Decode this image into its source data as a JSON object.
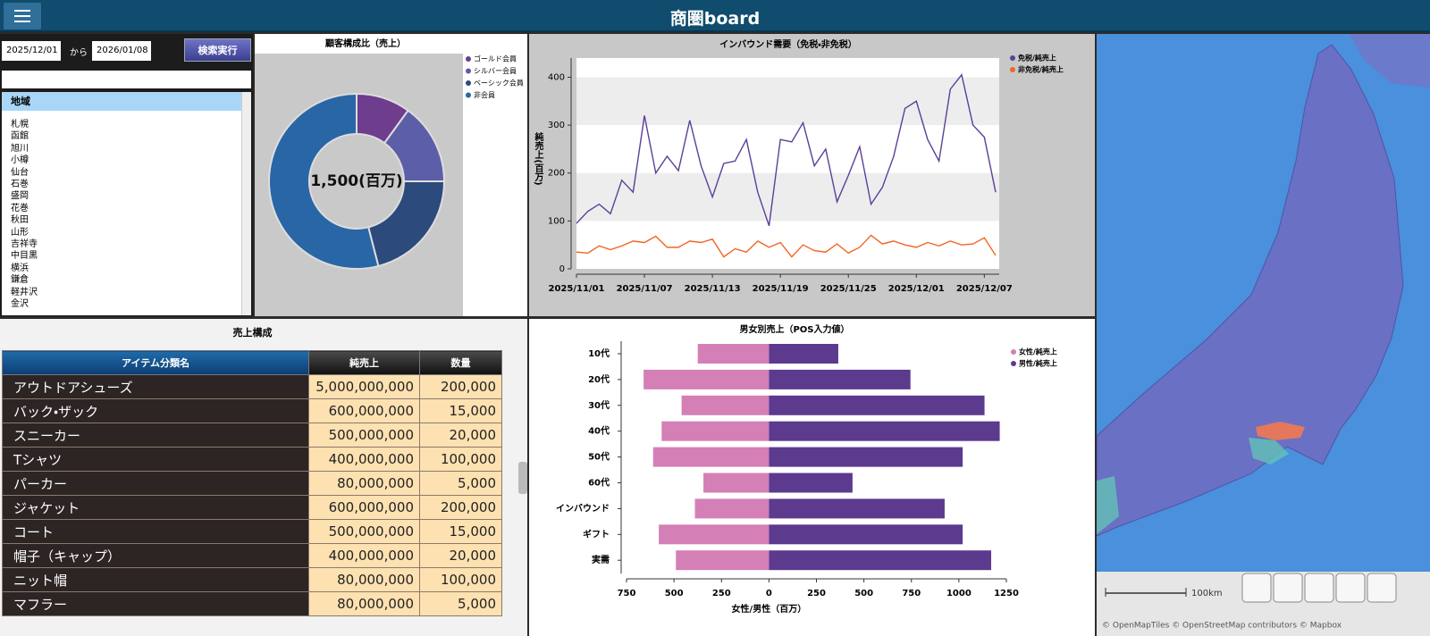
{
  "header": {
    "title": "商圏board"
  },
  "filters": {
    "start_date": "2025/12/01",
    "separator": "から",
    "end_date": "2026/01/08",
    "search_button": "検索実行"
  },
  "region_list": {
    "header": "地域",
    "items": [
      "札幌",
      "函館",
      "旭川",
      "小樽",
      "仙台",
      "石巻",
      "盛岡",
      "花巻",
      "秋田",
      "山形",
      "吉祥寺",
      "中目黒",
      "横浜",
      "鎌倉",
      "軽井沢",
      "金沢"
    ]
  },
  "chart_data": [
    {
      "type": "donut",
      "title": "顧客構成比（売上）",
      "center_label": "1,500(百万)",
      "categories": [
        "ゴールド会員",
        "シルバー会員",
        "ベーシック会員",
        "非会員"
      ],
      "values": [
        10,
        15,
        21,
        54
      ],
      "colors": [
        "#6e3d8e",
        "#5d5ea8",
        "#2c4a7b",
        "#2966a6"
      ]
    },
    {
      "type": "line",
      "title": "インバウンド需要（免税・非免税）",
      "y_label": "純売上(百万)",
      "x": [
        "2025/11/01",
        "2025/11/02",
        "2025/11/03",
        "2025/11/04",
        "2025/11/05",
        "2025/11/06",
        "2025/11/07",
        "2025/11/08",
        "2025/11/09",
        "2025/11/10",
        "2025/11/11",
        "2025/11/12",
        "2025/11/13",
        "2025/11/14",
        "2025/11/15",
        "2025/11/16",
        "2025/11/17",
        "2025/11/18",
        "2025/11/19",
        "2025/11/20",
        "2025/11/21",
        "2025/11/22",
        "2025/11/23",
        "2025/11/24",
        "2025/11/25",
        "2025/11/26",
        "2025/11/27",
        "2025/11/28",
        "2025/11/29",
        "2025/11/30",
        "2025/12/01",
        "2025/12/02",
        "2025/12/03",
        "2025/12/04",
        "2025/12/05",
        "2025/12/06",
        "2025/12/07",
        "2025/12/08"
      ],
      "xticks": [
        "2025/11/01",
        "2025/11/07",
        "2025/11/13",
        "2025/11/19",
        "2025/11/25",
        "2025/12/01",
        "2025/12/07"
      ],
      "ylim": [
        0,
        440
      ],
      "yticks": [
        0,
        100,
        200,
        300,
        400
      ],
      "grid": true,
      "legend": "upper right",
      "series": [
        {
          "name": "免税/純売上",
          "color": "#5b3f99",
          "values": [
            95,
            120,
            135,
            115,
            185,
            160,
            320,
            200,
            235,
            205,
            310,
            215,
            150,
            220,
            225,
            270,
            160,
            90,
            270,
            265,
            305,
            215,
            250,
            140,
            195,
            255,
            135,
            170,
            235,
            335,
            350,
            270,
            225,
            375,
            405,
            300,
            275,
            160
          ]
        },
        {
          "name": "非免税/純売上",
          "color": "#f26522",
          "values": [
            35,
            33,
            48,
            40,
            48,
            58,
            55,
            68,
            45,
            45,
            58,
            55,
            62,
            25,
            42,
            35,
            58,
            45,
            55,
            25,
            50,
            38,
            35,
            52,
            33,
            45,
            70,
            52,
            58,
            50,
            45,
            55,
            48,
            58,
            50,
            52,
            65,
            28
          ]
        }
      ]
    },
    {
      "type": "butterfly",
      "title": "男女別売上（POS入力値）",
      "x_label": "女性/男性（百万）",
      "categories": [
        "10代",
        "20代",
        "30代",
        "40代",
        "50代",
        "60代",
        "インバウンド",
        "ギフト",
        "実需"
      ],
      "xlim": [
        -750,
        1250
      ],
      "xticks": [
        {
          "value": -750,
          "label": "750"
        },
        {
          "value": -500,
          "label": "500"
        },
        {
          "value": -250,
          "label": "250"
        },
        0,
        250,
        500,
        750,
        1000,
        1250
      ],
      "legend": "upper right",
      "series": [
        {
          "name": "女性/純売上",
          "color": "#d47fb6",
          "values": [
            -375,
            -660,
            -460,
            -565,
            -610,
            -345,
            -390,
            -580,
            -490
          ]
        },
        {
          "name": "男性/純売上",
          "color": "#5c3a8e",
          "values": [
            365,
            745,
            1135,
            1215,
            1020,
            440,
            925,
            1020,
            1170
          ]
        }
      ]
    }
  ],
  "table": {
    "title": "売上構成",
    "columns": [
      "アイテム分類名",
      "純売上",
      "数量"
    ],
    "rows": [
      [
        "アウトドアシューズ",
        "5,000,000,000",
        "200,000"
      ],
      [
        "バック・ザック",
        "600,000,000",
        "15,000"
      ],
      [
        "スニーカー",
        "500,000,000",
        "20,000"
      ],
      [
        "Tシャツ",
        "400,000,000",
        "100,000"
      ],
      [
        "パーカー",
        "80,000,000",
        "5,000"
      ],
      [
        "ジャケット",
        "600,000,000",
        "200,000"
      ],
      [
        "コート",
        "500,000,000",
        "15,000"
      ],
      [
        "帽子（キャップ）",
        "400,000,000",
        "20,000"
      ],
      [
        "ニット帽",
        "80,000,000",
        "100,000"
      ],
      [
        "マフラー",
        "80,000,000",
        "5,000"
      ]
    ]
  },
  "map": {
    "scale_label": "100km",
    "attribution": "© OpenMapTiles © OpenStreetMap contributors © Mapbox"
  }
}
